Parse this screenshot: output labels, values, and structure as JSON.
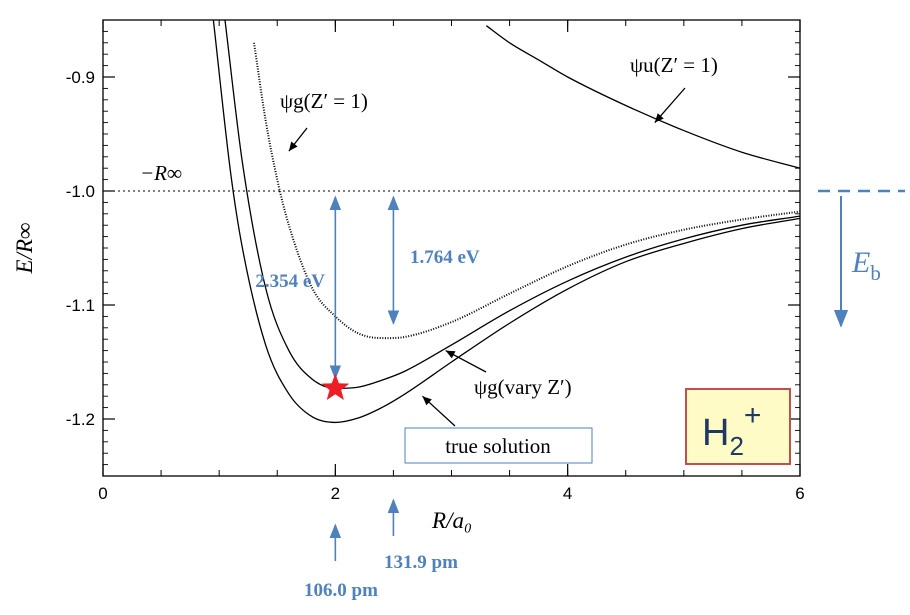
{
  "chart_data": {
    "type": "line",
    "xlabel": "R/a₀",
    "ylabel": "E/R∞",
    "xlim": [
      0,
      6
    ],
    "ylim": [
      -1.25,
      -0.85
    ],
    "x_ticks": [
      {
        "value": 0,
        "label": "0"
      },
      {
        "value": 2,
        "label": "2"
      },
      {
        "value": 4,
        "label": "4"
      },
      {
        "value": 6,
        "label": "6"
      }
    ],
    "y_ticks": [
      {
        "value": -0.9,
        "label": "-0.9"
      },
      {
        "value": -1.0,
        "label": "-1.0"
      },
      {
        "value": -1.1,
        "label": "-1.1"
      },
      {
        "value": -1.2,
        "label": "-1.2"
      }
    ],
    "reference_line": {
      "value": -1.0,
      "label": "−R∞"
    },
    "series": [
      {
        "name": "ψg(Z′ = 1)",
        "style": "dotted",
        "color": "#000000",
        "x": [
          1.3,
          1.4,
          1.5,
          1.6,
          1.8,
          2.0,
          2.2,
          2.4,
          2.6,
          3.0,
          3.5,
          4.0,
          4.5,
          5.0,
          5.5,
          6.0
        ],
        "y": [
          -0.87,
          -0.938,
          -0.99,
          -1.03,
          -1.085,
          -1.11,
          -1.125,
          -1.129,
          -1.128,
          -1.115,
          -1.09,
          -1.066,
          -1.047,
          -1.034,
          -1.025,
          -1.018
        ]
      },
      {
        "name": "ψu(Z′ = 1)",
        "style": "solid",
        "color": "#000000",
        "x": [
          3.3,
          3.5,
          3.75,
          4.0,
          4.5,
          5.0,
          5.5,
          6.0
        ],
        "y": [
          -0.855,
          -0.87,
          -0.885,
          -0.9,
          -0.925,
          -0.947,
          -0.966,
          -0.98
        ]
      },
      {
        "name": "ψg(vary Z′)",
        "style": "solid",
        "color": "#000000",
        "x": [
          1.05,
          1.2,
          1.4,
          1.6,
          1.8,
          2.0,
          2.2,
          2.4,
          2.6,
          3.0,
          3.5,
          4.0,
          4.5,
          5.0,
          5.5,
          6.0
        ],
        "y": [
          -0.85,
          -0.975,
          -1.085,
          -1.14,
          -1.165,
          -1.173,
          -1.172,
          -1.166,
          -1.158,
          -1.135,
          -1.105,
          -1.079,
          -1.058,
          -1.042,
          -1.03,
          -1.022
        ]
      },
      {
        "name": "true solution",
        "style": "solid",
        "color": "#000000",
        "x": [
          0.95,
          1.1,
          1.2,
          1.4,
          1.6,
          1.8,
          2.0,
          2.2,
          2.4,
          2.6,
          3.0,
          3.5,
          4.0,
          4.5,
          5.0,
          5.5,
          6.0
        ],
        "y": [
          -0.85,
          -0.985,
          -1.05,
          -1.135,
          -1.178,
          -1.198,
          -1.203,
          -1.199,
          -1.19,
          -1.178,
          -1.15,
          -1.116,
          -1.086,
          -1.062,
          -1.046,
          -1.033,
          -1.024
        ]
      }
    ],
    "minimum_marker": {
      "x": 2.0,
      "y": -1.173,
      "color": "#ee1c25"
    },
    "annotations": [
      {
        "text": "ψg(Z′ = 1)",
        "target_x": 1.6,
        "target_y": -0.965
      },
      {
        "text": "ψu(Z′ = 1)",
        "target_x": 4.75,
        "target_y": -0.94
      },
      {
        "text": "ψg(vary Z′)",
        "target_x": 2.95,
        "target_y": -1.14
      },
      {
        "text": "true solution",
        "target_x": 2.75,
        "target_y": -1.18
      }
    ],
    "energy_gaps": [
      {
        "x": 2.0,
        "label": "2.354 eV"
      },
      {
        "x": 2.5,
        "label": "1.764 eV"
      }
    ],
    "bond_lengths": [
      {
        "x": 2.0,
        "label": "106.0 pm"
      },
      {
        "x": 2.5,
        "label": "131.9 pm"
      }
    ],
    "binding_energy_label": "E",
    "binding_energy_subscript": "b",
    "molecule_badge": {
      "base": "H",
      "subscript": "2",
      "superscript": "+"
    },
    "accent_color": "#4f81bd"
  }
}
